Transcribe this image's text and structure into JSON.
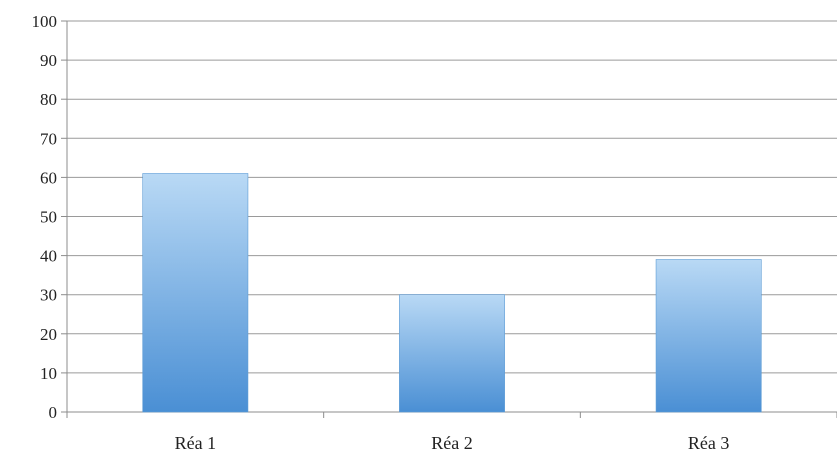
{
  "chart_data": {
    "type": "bar",
    "categories": [
      "Réa 1",
      "Réa 2",
      "Réa 3"
    ],
    "values": [
      61,
      30,
      39
    ],
    "title": "",
    "xlabel": "",
    "ylabel": "",
    "ylim": [
      0,
      100
    ],
    "yticks": [
      "0",
      "10",
      "20",
      "30",
      "40",
      "50",
      "60",
      "70",
      "80",
      "90",
      "100"
    ],
    "grid": true,
    "legend": "none",
    "colors": {
      "bar_top": "#b9d9f5",
      "bar_bottom": "#4a8fd4",
      "bar_edge": "#5b9bd5",
      "grid": "#9a9a9a",
      "axis": "#8c8c8c"
    }
  }
}
